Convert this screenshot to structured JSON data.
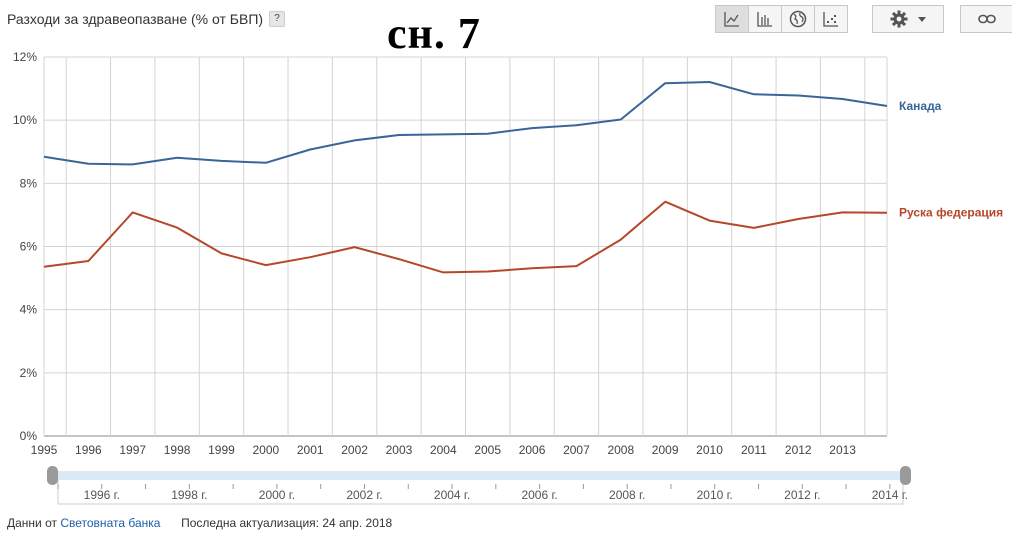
{
  "header": {
    "title": "Разходи за здравеопазване (% от БВП)",
    "help_label": "?",
    "overlay_text": "сн. 7"
  },
  "toolbar": {
    "buttons": [
      {
        "name": "line-chart-icon",
        "active": true
      },
      {
        "name": "bar-chart-icon",
        "active": false
      },
      {
        "name": "globe-icon",
        "active": false
      },
      {
        "name": "scatter-icon",
        "active": false
      }
    ],
    "settings_icon": "gear-icon",
    "dropdown_icon": "caret-down-icon",
    "link_icon": "link-icon"
  },
  "chart_data": {
    "type": "line",
    "x": [
      1995,
      1996,
      1997,
      1998,
      1999,
      2000,
      2001,
      2002,
      2003,
      2004,
      2005,
      2006,
      2007,
      2008,
      2009,
      2010,
      2011,
      2012,
      2013,
      2014
    ],
    "x_tick_labels": [
      "1995",
      "1996",
      "1997",
      "1998",
      "1999",
      "2000",
      "2001",
      "2002",
      "2003",
      "2004",
      "2005",
      "2006",
      "2007",
      "2008",
      "2009",
      "2010",
      "2011",
      "2012",
      "2013"
    ],
    "y_ticks": [
      "0%",
      "2%",
      "4%",
      "6%",
      "8%",
      "10%",
      "12%"
    ],
    "ylim": [
      0,
      12
    ],
    "grid": true,
    "series": [
      {
        "name": "Канада",
        "color": "#3a6599",
        "values": [
          8.84,
          8.62,
          8.6,
          8.81,
          8.71,
          8.65,
          9.07,
          9.36,
          9.53,
          9.55,
          9.57,
          9.75,
          9.84,
          10.02,
          11.17,
          11.21,
          10.82,
          10.78,
          10.67,
          10.45
        ]
      },
      {
        "name": "Руска федерация",
        "color": "#b5472a",
        "values": [
          5.36,
          5.54,
          7.08,
          6.6,
          5.78,
          5.41,
          5.66,
          5.98,
          5.6,
          5.18,
          5.21,
          5.31,
          5.38,
          6.22,
          7.42,
          6.82,
          6.59,
          6.87,
          7.08,
          7.07
        ]
      }
    ]
  },
  "range_selector": {
    "labels": [
      "1996 г.",
      "1998 г.",
      "2000 г.",
      "2002 г.",
      "2004 г.",
      "2006 г.",
      "2008 г.",
      "2010 г.",
      "2012 г.",
      "2014 г."
    ]
  },
  "footer": {
    "data_prefix": "Данни от",
    "source_link": "Световната банка",
    "updated_label": "Последна актуализация: 24 апр. 2018"
  }
}
